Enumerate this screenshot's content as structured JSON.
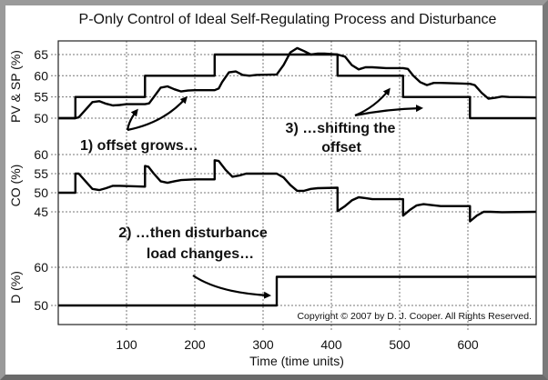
{
  "chart_data": {
    "type": "line",
    "title": "P-Only Control of Ideal Self-Regulating Process and Disturbance",
    "xlabel": "Time (time units)",
    "xlim": [
      0,
      700
    ],
    "xticks": [
      100,
      200,
      300,
      400,
      500,
      600
    ],
    "grid": true,
    "copyright": "Copyright © 2007 by D. J. Cooper. All Rights Reserved.",
    "panels": [
      {
        "id": "pv",
        "ylabel": "PV & SP (%)",
        "yticks": [
          50,
          55,
          60,
          65
        ],
        "series": [
          {
            "name": "SP",
            "points": [
              [
                0,
                50
              ],
              [
                25,
                50
              ],
              [
                25,
                55
              ],
              [
                127,
                55
              ],
              [
                127,
                60
              ],
              [
                229,
                60
              ],
              [
                229,
                65
              ],
              [
                409,
                65
              ],
              [
                409,
                60
              ],
              [
                505,
                60
              ],
              [
                505,
                55
              ],
              [
                603,
                55
              ],
              [
                603,
                50
              ],
              [
                700,
                50
              ]
            ]
          },
          {
            "name": "PV",
            "points": [
              [
                0,
                50
              ],
              [
                25,
                50
              ],
              [
                30,
                50.2
              ],
              [
                40,
                52
              ],
              [
                50,
                53.8
              ],
              [
                60,
                54
              ],
              [
                70,
                53.4
              ],
              [
                80,
                53
              ],
              [
                90,
                53.1
              ],
              [
                100,
                53.3
              ],
              [
                127,
                53.3
              ],
              [
                133,
                53.5
              ],
              [
                140,
                55
              ],
              [
                150,
                57.2
              ],
              [
                160,
                57.5
              ],
              [
                170,
                56.8
              ],
              [
                180,
                56.3
              ],
              [
                190,
                56.5
              ],
              [
                200,
                56.6
              ],
              [
                229,
                56.6
              ],
              [
                235,
                57
              ],
              [
                240,
                58.5
              ],
              [
                250,
                60.8
              ],
              [
                260,
                61
              ],
              [
                270,
                60.2
              ],
              [
                280,
                60
              ],
              [
                290,
                60.2
              ],
              [
                320,
                60.3
              ],
              [
                330,
                62.5
              ],
              [
                340,
                65.5
              ],
              [
                350,
                66.5
              ],
              [
                360,
                65.8
              ],
              [
                370,
                65
              ],
              [
                380,
                65.2
              ],
              [
                390,
                65.2
              ],
              [
                409,
                65
              ],
              [
                420,
                64.5
              ],
              [
                430,
                62.5
              ],
              [
                440,
                61.5
              ],
              [
                450,
                62
              ],
              [
                460,
                62
              ],
              [
                480,
                61.8
              ],
              [
                505,
                61.8
              ],
              [
                512,
                61.6
              ],
              [
                520,
                60
              ],
              [
                530,
                58.5
              ],
              [
                540,
                57.8
              ],
              [
                550,
                58.3
              ],
              [
                560,
                58.3
              ],
              [
                603,
                58.1
              ],
              [
                610,
                57.8
              ],
              [
                620,
                56
              ],
              [
                630,
                54.6
              ],
              [
                640,
                54.8
              ],
              [
                650,
                55.1
              ],
              [
                660,
                55
              ],
              [
                700,
                54.9
              ]
            ]
          }
        ]
      },
      {
        "id": "co",
        "ylabel": "CO (%)",
        "yticks": [
          45,
          50,
          55,
          60
        ],
        "series": [
          {
            "name": "CO",
            "points": [
              [
                0,
                50
              ],
              [
                25,
                50
              ],
              [
                25,
                55
              ],
              [
                30,
                55
              ],
              [
                40,
                53
              ],
              [
                50,
                51
              ],
              [
                60,
                50.7
              ],
              [
                70,
                51.2
              ],
              [
                80,
                51.8
              ],
              [
                90,
                51.8
              ],
              [
                127,
                51.6
              ],
              [
                127,
                57
              ],
              [
                132,
                56.8
              ],
              [
                140,
                55
              ],
              [
                150,
                53
              ],
              [
                160,
                52.6
              ],
              [
                170,
                53
              ],
              [
                180,
                53.3
              ],
              [
                200,
                53.5
              ],
              [
                229,
                53.5
              ],
              [
                229,
                58.5
              ],
              [
                235,
                58.3
              ],
              [
                245,
                56
              ],
              [
                255,
                54.2
              ],
              [
                265,
                54.5
              ],
              [
                275,
                55
              ],
              [
                320,
                55
              ],
              [
                330,
                54
              ],
              [
                340,
                52
              ],
              [
                350,
                50.5
              ],
              [
                360,
                50.5
              ],
              [
                370,
                51
              ],
              [
                380,
                51.2
              ],
              [
                409,
                51.3
              ],
              [
                409,
                45.2
              ],
              [
                420,
                46.5
              ],
              [
                430,
                48
              ],
              [
                440,
                48.8
              ],
              [
                450,
                48.6
              ],
              [
                460,
                48.3
              ],
              [
                505,
                48.3
              ],
              [
                505,
                44
              ],
              [
                515,
                45.5
              ],
              [
                525,
                46.7
              ],
              [
                535,
                47
              ],
              [
                545,
                46.8
              ],
              [
                560,
                46.5
              ],
              [
                603,
                46.5
              ],
              [
                603,
                42.5
              ],
              [
                613,
                44
              ],
              [
                623,
                45
              ],
              [
                633,
                45
              ],
              [
                650,
                44.9
              ],
              [
                700,
                45
              ]
            ]
          }
        ]
      },
      {
        "id": "d",
        "ylabel": "D (%)",
        "yticks": [
          50,
          60
        ],
        "series": [
          {
            "name": "D",
            "points": [
              [
                0,
                50
              ],
              [
                320,
                50
              ],
              [
                320,
                57.5
              ],
              [
                700,
                57.5
              ]
            ]
          }
        ]
      }
    ],
    "annotations": {
      "a1": "1) offset grows…",
      "a2_line1": "2) …then disturbance",
      "a2_line2": "load changes…",
      "a3_line1": "3) …shifting the",
      "a3_line2": "offset"
    }
  }
}
